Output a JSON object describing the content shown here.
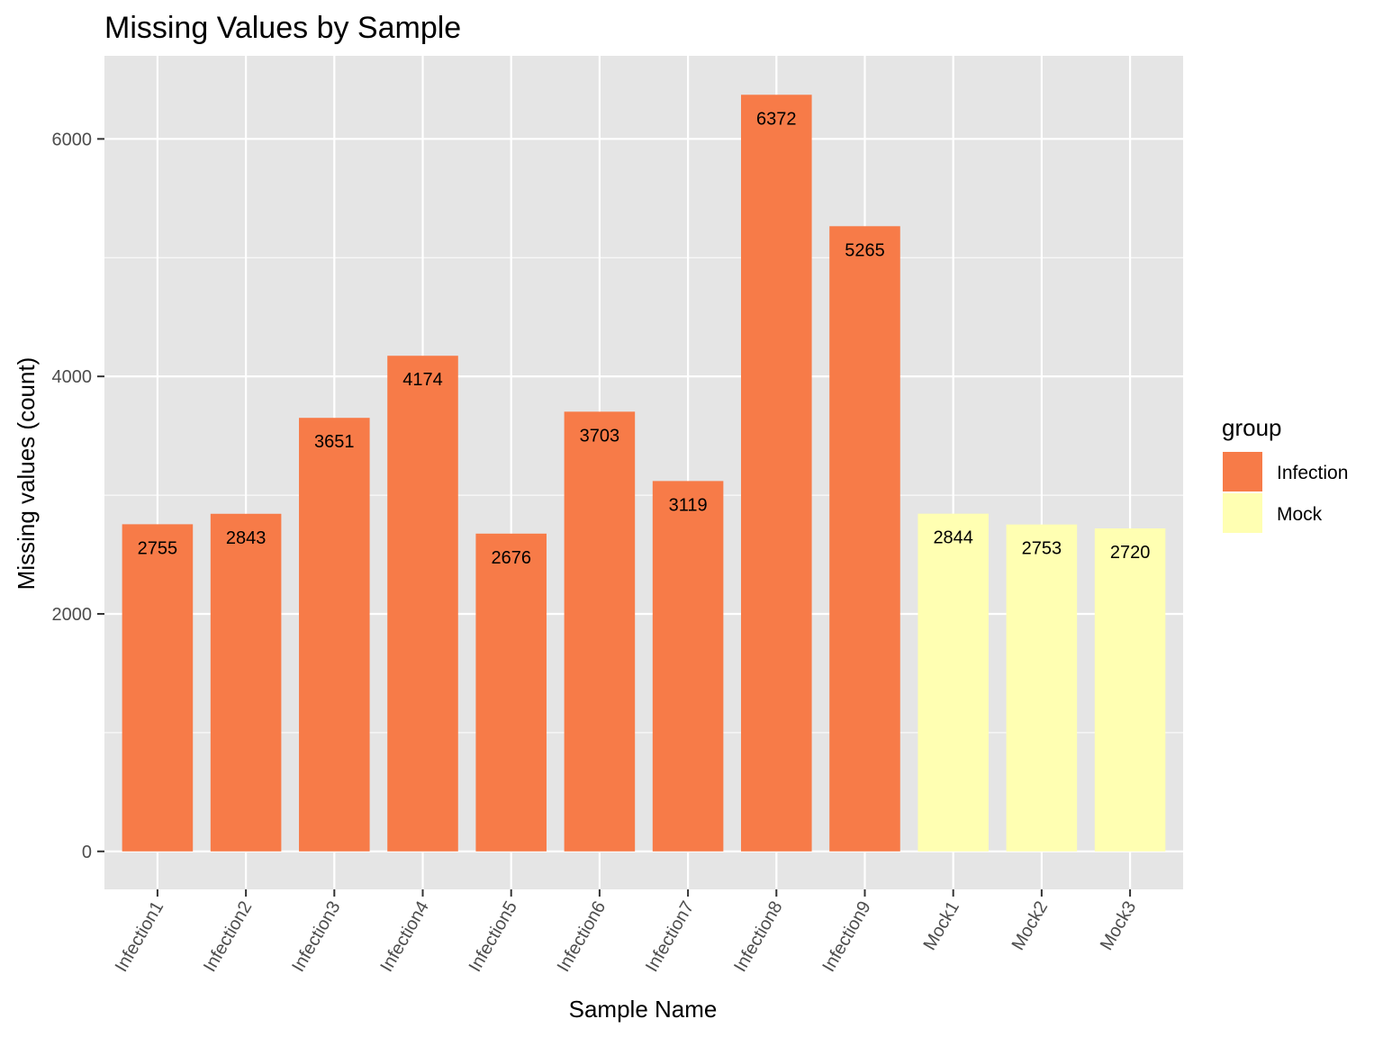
{
  "chart_data": {
    "type": "bar",
    "title": "Missing Values by Sample",
    "xlabel": "Sample Name",
    "ylabel": "Missing values (count)",
    "categories": [
      "Infection1",
      "Infection2",
      "Infection3",
      "Infection4",
      "Infection5",
      "Infection6",
      "Infection7",
      "Infection8",
      "Infection9",
      "Mock1",
      "Mock2",
      "Mock3"
    ],
    "values": [
      2755,
      2843,
      3651,
      4174,
      2676,
      3703,
      3119,
      6372,
      5265,
      2844,
      2753,
      2720
    ],
    "groups": [
      "Infection",
      "Infection",
      "Infection",
      "Infection",
      "Infection",
      "Infection",
      "Infection",
      "Infection",
      "Infection",
      "Mock",
      "Mock",
      "Mock"
    ],
    "ylim": [
      -320,
      6700
    ],
    "y_ticks": [
      0,
      2000,
      4000,
      6000
    ],
    "y_minor_ticks": [
      1000,
      3000,
      5000
    ],
    "grid": true,
    "legend": {
      "title": "group",
      "placement": "right",
      "entries": [
        {
          "label": "Infection",
          "color": "#F77B48"
        },
        {
          "label": "Mock",
          "color": "#FFFFB2"
        }
      ]
    },
    "colors": {
      "panel_background": "#E5E5E5",
      "grid": "#FFFFFF"
    }
  }
}
